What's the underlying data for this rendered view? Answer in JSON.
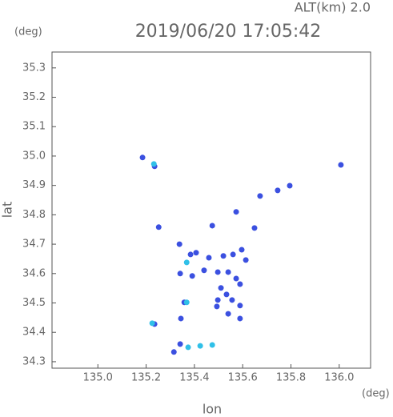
{
  "chart_data": {
    "type": "scatter",
    "title": "2019/06/20 17:05:42",
    "subtitle": "ALT(km) 2.0",
    "y_unit": "(deg)",
    "x_unit": "(deg)",
    "x_label": "lon",
    "y_label": "lat",
    "xlim": [
      134.81,
      136.13
    ],
    "ylim": [
      34.278,
      35.354
    ],
    "xticks": [
      {
        "value": 135.0,
        "label": "135.0"
      },
      135.2,
      135.4,
      135.6,
      135.8,
      {
        "value": 136.0,
        "label": "136.0"
      }
    ],
    "yticks": [
      35.3,
      35.2,
      35.1,
      {
        "value": 35.0,
        "label": "35.0"
      },
      34.9,
      34.8,
      34.7,
      34.6,
      34.5,
      34.4,
      34.3
    ],
    "series": [
      {
        "color": "#3b50e0",
        "x": [
          135.185,
          135.235,
          135.672,
          135.745,
          135.795,
          136.007,
          135.252,
          135.474,
          135.573,
          135.649,
          135.338,
          135.384,
          135.407,
          135.46,
          135.52,
          135.56,
          135.596,
          135.613,
          135.341,
          135.391,
          135.44,
          135.497,
          135.54,
          135.573,
          135.589,
          135.51,
          135.533,
          135.497,
          135.556,
          135.589,
          135.493,
          135.54,
          135.358,
          135.344,
          135.235,
          135.341,
          135.315,
          135.589
        ],
        "y": [
          34.995,
          34.965,
          34.864,
          34.883,
          34.899,
          34.97,
          34.758,
          34.763,
          34.81,
          34.755,
          34.7,
          34.665,
          34.671,
          34.654,
          34.66,
          34.665,
          34.681,
          34.646,
          34.6,
          34.592,
          34.611,
          34.605,
          34.605,
          34.583,
          34.564,
          34.551,
          34.529,
          34.51,
          34.51,
          34.491,
          34.488,
          34.463,
          34.502,
          34.447,
          34.428,
          34.36,
          34.333,
          34.447
        ]
      },
      {
        "color": "#30c0e8",
        "x": [
          135.232,
          135.368,
          135.368,
          135.225,
          135.374,
          135.424,
          135.474
        ],
        "y": [
          34.973,
          34.638,
          34.502,
          34.431,
          34.349,
          34.354,
          34.357
        ]
      }
    ]
  }
}
